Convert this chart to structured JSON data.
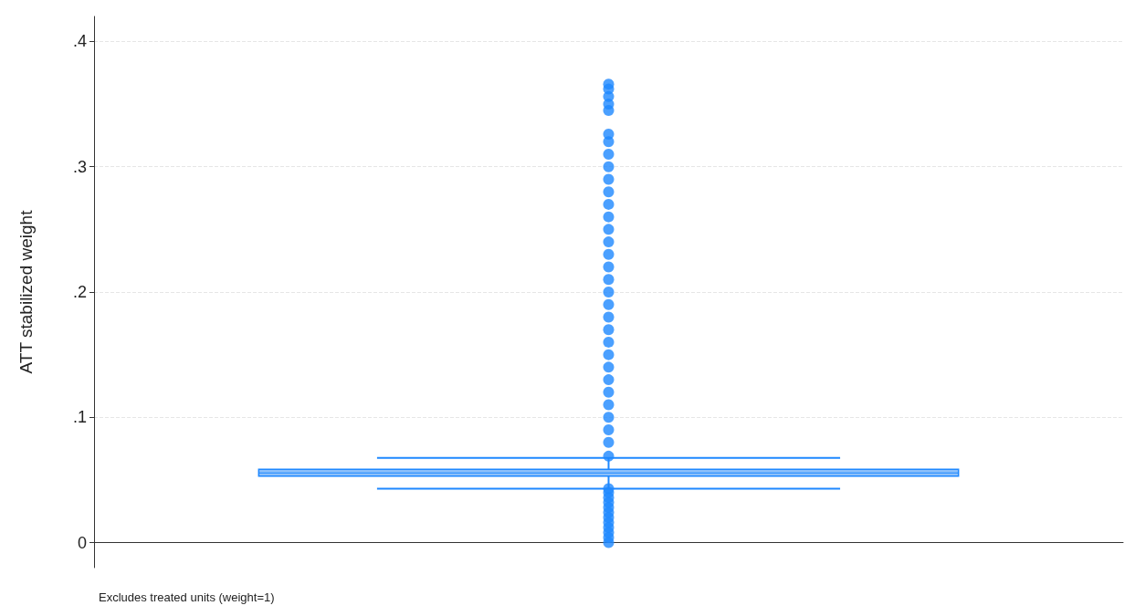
{
  "chart_data": {
    "type": "box",
    "ylabel": "ATT stabilized weight",
    "categories": [
      null
    ],
    "series": [
      {
        "color": "#1e88ff",
        "boxes": [
          {
            "low": 0.043,
            "q1": 0.053,
            "median": 0.0556,
            "q3": 0.0585,
            "high": 0.0676,
            "outliers": [
              0,
              0.004,
              0.008,
              0.012,
              0.016,
              0.02,
              0.024,
              0.028,
              0.032,
              0.036,
              0.04,
              0.043,
              0.069,
              0.08,
              0.09,
              0.1,
              0.11,
              0.12,
              0.13,
              0.14,
              0.15,
              0.16,
              0.17,
              0.18,
              0.19,
              0.2,
              0.21,
              0.22,
              0.23,
              0.24,
              0.25,
              0.26,
              0.27,
              0.28,
              0.29,
              0.3,
              0.31,
              0.32,
              0.326,
              0.345,
              0.35,
              0.356,
              0.362,
              0.366
            ]
          }
        ]
      }
    ],
    "ylim": [
      -0.02,
      0.42
    ],
    "yticks": [
      {
        "value": 0,
        "label": "0"
      },
      {
        "value": 0.1,
        "label": ".1"
      },
      {
        "value": 0.2,
        "label": ".2"
      },
      {
        "value": 0.3,
        "label": ".3"
      },
      {
        "value": 0.4,
        "label": ".4"
      }
    ],
    "grid": "y",
    "marker": "circle",
    "annotations": [
      "Excludes treated units (weight=1)"
    ]
  }
}
